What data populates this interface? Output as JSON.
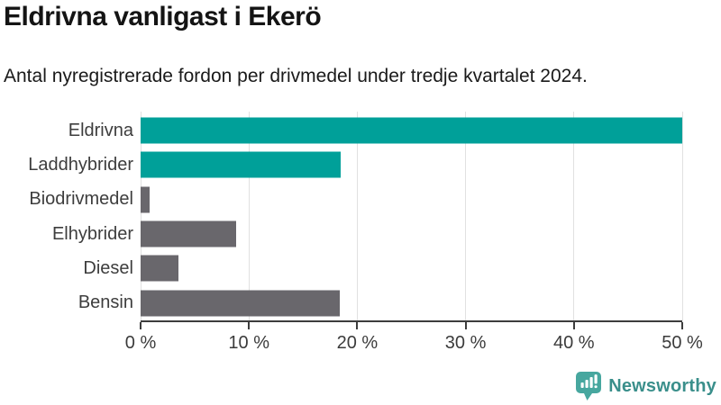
{
  "chart": {
    "title": "Eldrivna vanligast i Ekerö",
    "subtitle": "Antal nyregistrerade fordon per drivmedel under tredje kvartalet 2024."
  },
  "chart_data": {
    "type": "bar",
    "orientation": "horizontal",
    "title": "Eldrivna vanligast i Ekerö",
    "subtitle": "Antal nyregistrerade fordon per drivmedel under tredje kvartalet 2024.",
    "categories": [
      "Eldrivna",
      "Laddhybrider",
      "Biodrivmedel",
      "Elhybrider",
      "Diesel",
      "Bensin"
    ],
    "values": [
      50.0,
      18.5,
      0.8,
      8.8,
      3.5,
      18.4
    ],
    "unit": "%",
    "xlim": [
      0,
      50
    ],
    "x_ticks": [
      0,
      10,
      20,
      30,
      40,
      50
    ],
    "x_tick_labels": [
      "0 %",
      "10 %",
      "20 %",
      "30 %",
      "40 %",
      "50 %"
    ],
    "bar_colors": [
      "#00a099",
      "#00a099",
      "#69676c",
      "#69676c",
      "#69676c",
      "#69676c"
    ],
    "highlight_color": "#00a099",
    "default_color": "#69676c",
    "grid": "vertical-gridlines",
    "gridline_color": "#e1e1e1",
    "axis_color": "#3d3d3d",
    "label_color": "#3d3d3d"
  },
  "logo": {
    "text": "Newsworthy",
    "icon": "newsworthy-chart-bubble-icon",
    "icon_color": "#47a79f",
    "text_color": "#3a8f8b"
  }
}
